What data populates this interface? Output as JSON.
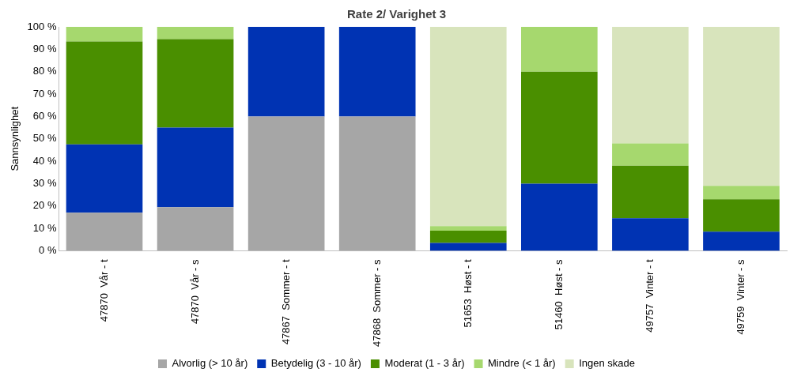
{
  "chart_data": {
    "type": "bar",
    "title": "Rate 2/ Varighet 3",
    "y_label": "Sannsynlighet",
    "stacked": true,
    "grid": false,
    "legend": "bottom",
    "categories": [
      "47870  Vår - t",
      "47870  Vår - s",
      "47867  Sommer - t",
      "47868  Sommer - s",
      "51653  Høst - t",
      "51460  Høst - s",
      "49757  Vinter - t",
      "49759  Vinter - s"
    ],
    "series": [
      {
        "name": "Alvorlig (> 10 år)",
        "color": "#a6a6a6",
        "values": [
          17,
          19.5,
          60,
          60,
          0,
          0,
          0,
          0
        ]
      },
      {
        "name": "Betydelig (3 - 10 år)",
        "color": "#0033b3",
        "values": [
          30.5,
          35.5,
          40,
          40,
          3.5,
          30,
          14.5,
          8.5
        ]
      },
      {
        "name": "Moderat (1 - 3 år)",
        "color": "#4a8f00",
        "values": [
          46,
          39.5,
          0,
          0,
          5.5,
          50,
          23.5,
          14.5
        ]
      },
      {
        "name": "Mindre (< 1 år)",
        "color": "#a6d86e",
        "values": [
          6.5,
          5.5,
          0,
          0,
          2,
          20,
          10,
          6
        ]
      },
      {
        "name": "Ingen skade",
        "color": "#d8e4bc",
        "values": [
          0,
          0,
          0,
          0,
          89,
          0,
          52,
          71
        ]
      }
    ],
    "ylim": [
      0,
      100
    ],
    "yticks": [
      {
        "value": 0,
        "label": "0 %"
      },
      {
        "value": 10,
        "label": "10 %"
      },
      {
        "value": 20,
        "label": "20 %"
      },
      {
        "value": 30,
        "label": "30 %"
      },
      {
        "value": 40,
        "label": "40 %"
      },
      {
        "value": 50,
        "label": "50 %"
      },
      {
        "value": 60,
        "label": "60 %"
      },
      {
        "value": 70,
        "label": "70 %"
      },
      {
        "value": 80,
        "label": "80 %"
      },
      {
        "value": 90,
        "label": "90 %"
      },
      {
        "value": 100,
        "label": "100 %"
      }
    ]
  }
}
